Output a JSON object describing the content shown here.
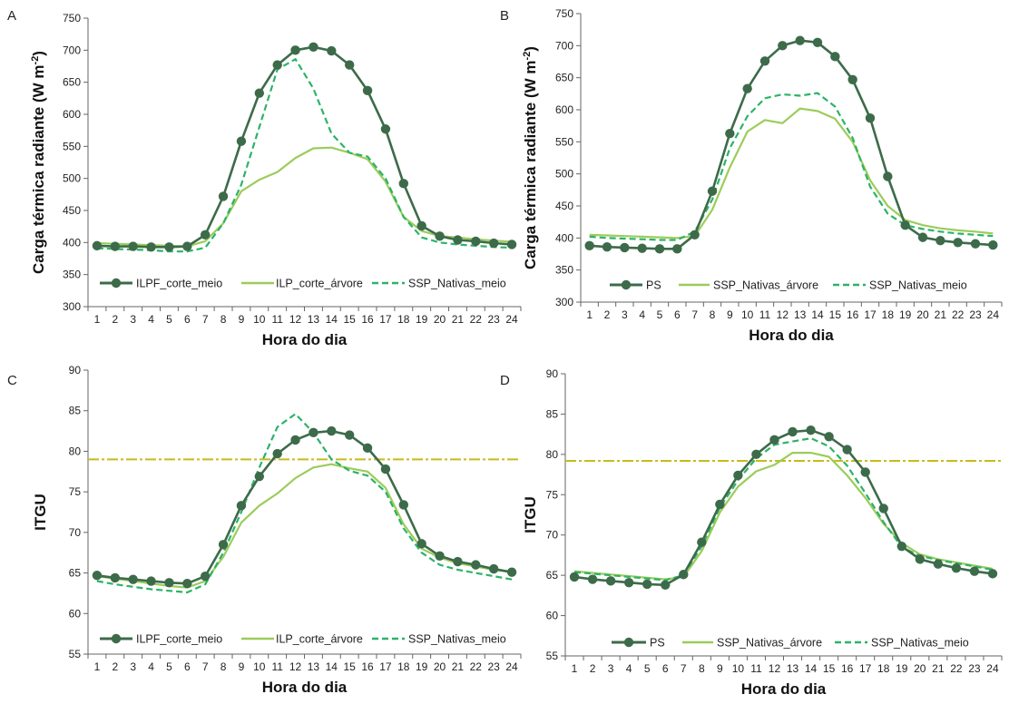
{
  "colors": {
    "dark": "#3d6b4a",
    "light": "#9ccc5a",
    "dashed": "#2bb368",
    "threshold": "#c8bb1a",
    "axis": "#666666"
  },
  "chart_data": [
    {
      "id": "A",
      "type": "line",
      "panel_letter": "A",
      "ylabel": "Carga térmica radiante (W m",
      "ylabel_sup": "-2",
      "ylabel_close": ")",
      "xlabel": "Hora do dia",
      "x": [
        1,
        2,
        3,
        4,
        5,
        6,
        7,
        8,
        9,
        10,
        11,
        12,
        13,
        14,
        15,
        16,
        17,
        18,
        19,
        20,
        21,
        22,
        23,
        24
      ],
      "ylim": [
        300,
        750
      ],
      "yticks": [
        300,
        350,
        400,
        450,
        500,
        550,
        600,
        650,
        700,
        750
      ],
      "legend_position": "bottom",
      "series": [
        {
          "name": "ILPF_corte_meio",
          "style": "dark-marker",
          "values": [
            395,
            394,
            394,
            393,
            393,
            394,
            412,
            472,
            558,
            633,
            677,
            700,
            705,
            699,
            677,
            637,
            577,
            492,
            426,
            410,
            404,
            402,
            399,
            397
          ]
        },
        {
          "name": "ILP_corte_árvore",
          "style": "light",
          "values": [
            399,
            398,
            397,
            396,
            395,
            394,
            402,
            430,
            480,
            498,
            510,
            532,
            547,
            548,
            540,
            530,
            495,
            440,
            418,
            410,
            408,
            405,
            403,
            401
          ]
        },
        {
          "name": "SSP_Nativas_meio",
          "style": "dashed",
          "values": [
            391,
            390,
            389,
            388,
            386,
            386,
            392,
            430,
            490,
            580,
            670,
            686,
            640,
            570,
            540,
            534,
            500,
            440,
            408,
            400,
            397,
            395,
            393,
            392
          ]
        }
      ]
    },
    {
      "id": "B",
      "type": "line",
      "panel_letter": "B",
      "ylabel": "Carga térmica radiante (W m",
      "ylabel_sup": "-2",
      "ylabel_close": ")",
      "xlabel": "Hora do dia",
      "x": [
        1,
        2,
        3,
        4,
        5,
        6,
        7,
        8,
        9,
        10,
        11,
        12,
        13,
        14,
        15,
        16,
        17,
        18,
        19,
        20,
        21,
        22,
        23,
        24
      ],
      "ylim": [
        300,
        750
      ],
      "yticks": [
        300,
        350,
        400,
        450,
        500,
        550,
        600,
        650,
        700,
        750
      ],
      "legend_position": "bottom",
      "series": [
        {
          "name": "PS",
          "style": "dark-marker",
          "values": [
            388,
            386,
            385,
            384,
            383,
            383,
            405,
            473,
            563,
            633,
            676,
            700,
            708,
            705,
            683,
            647,
            587,
            496,
            420,
            401,
            396,
            393,
            391,
            389
          ]
        },
        {
          "name": "SSP_Nativas_árvore",
          "style": "light",
          "values": [
            405,
            404,
            403,
            402,
            401,
            400,
            403,
            444,
            510,
            566,
            584,
            579,
            602,
            598,
            586,
            550,
            490,
            450,
            428,
            420,
            415,
            412,
            410,
            407
          ]
        },
        {
          "name": "SSP_Nativas_meio",
          "style": "dashed",
          "values": [
            402,
            400,
            399,
            398,
            397,
            397,
            410,
            460,
            540,
            590,
            618,
            624,
            622,
            626,
            605,
            556,
            480,
            438,
            420,
            414,
            410,
            407,
            405,
            403
          ]
        }
      ]
    },
    {
      "id": "C",
      "type": "line",
      "panel_letter": "C",
      "ylabel": "ITGU",
      "ylabel_sup": "",
      "ylabel_close": "",
      "xlabel": "Hora do dia",
      "x": [
        1,
        2,
        3,
        4,
        5,
        6,
        7,
        8,
        9,
        10,
        11,
        12,
        13,
        14,
        15,
        16,
        17,
        18,
        19,
        20,
        21,
        22,
        23,
        24
      ],
      "ylim": [
        55,
        90
      ],
      "yticks": [
        55,
        60,
        65,
        70,
        75,
        80,
        85,
        90
      ],
      "threshold": 79,
      "legend_position": "bottom",
      "series": [
        {
          "name": "ILPF_corte_meio",
          "style": "dark-marker",
          "values": [
            64.7,
            64.4,
            64.2,
            64.0,
            63.8,
            63.7,
            64.6,
            68.5,
            73.3,
            76.9,
            79.7,
            81.4,
            82.3,
            82.5,
            82.0,
            80.4,
            77.8,
            73.4,
            68.6,
            67.1,
            66.4,
            66.0,
            65.5,
            65.1
          ]
        },
        {
          "name": "ILP_corte_árvore",
          "style": "light",
          "values": [
            64.6,
            64.3,
            64.0,
            63.7,
            63.4,
            63.2,
            64.0,
            67.0,
            71.2,
            73.3,
            74.8,
            76.7,
            78.0,
            78.4,
            77.9,
            77.5,
            75.5,
            71.0,
            68.0,
            66.9,
            66.2,
            65.8,
            65.4,
            65.1
          ]
        },
        {
          "name": "SSP_Nativas_meio",
          "style": "dashed",
          "values": [
            64.0,
            63.6,
            63.3,
            63.0,
            62.8,
            62.6,
            63.6,
            67.5,
            72.5,
            78.0,
            83.0,
            84.6,
            82.3,
            79.0,
            77.6,
            77.0,
            75.0,
            70.5,
            67.5,
            66.0,
            65.4,
            65.0,
            64.6,
            64.2
          ]
        }
      ]
    },
    {
      "id": "D",
      "type": "line",
      "panel_letter": "D",
      "ylabel": "ITGU",
      "ylabel_sup": "",
      "ylabel_close": "",
      "xlabel": "Hora do dia",
      "x": [
        1,
        2,
        3,
        4,
        5,
        6,
        7,
        8,
        9,
        10,
        11,
        12,
        13,
        14,
        15,
        16,
        17,
        18,
        19,
        20,
        21,
        22,
        23,
        24
      ],
      "ylim": [
        55,
        90
      ],
      "yticks": [
        55,
        60,
        65,
        70,
        75,
        80,
        85,
        90
      ],
      "threshold": 79.2,
      "legend_position": "bottom",
      "series": [
        {
          "name": "PS",
          "style": "dark-marker",
          "values": [
            64.8,
            64.5,
            64.3,
            64.1,
            63.9,
            63.8,
            65.1,
            69.1,
            73.8,
            77.4,
            80.0,
            81.8,
            82.8,
            83.0,
            82.2,
            80.6,
            77.8,
            73.3,
            68.6,
            67.0,
            66.4,
            65.9,
            65.5,
            65.2
          ]
        },
        {
          "name": "SSP_Nativas_árvore",
          "style": "light",
          "values": [
            65.5,
            65.3,
            65.1,
            64.9,
            64.7,
            64.5,
            64.8,
            68.0,
            72.8,
            76.0,
            77.9,
            78.7,
            80.2,
            80.2,
            79.7,
            77.4,
            74.6,
            71.4,
            69.0,
            67.6,
            67.0,
            66.6,
            66.2,
            65.8
          ]
        },
        {
          "name": "SSP_Nativas_meio",
          "style": "dashed",
          "values": [
            65.4,
            65.2,
            65.0,
            64.8,
            64.6,
            64.4,
            65.0,
            68.6,
            73.4,
            76.8,
            79.5,
            81.2,
            81.6,
            82.0,
            81.0,
            78.6,
            75.2,
            71.6,
            68.5,
            67.4,
            66.9,
            66.5,
            66.1,
            65.7
          ]
        }
      ]
    }
  ]
}
